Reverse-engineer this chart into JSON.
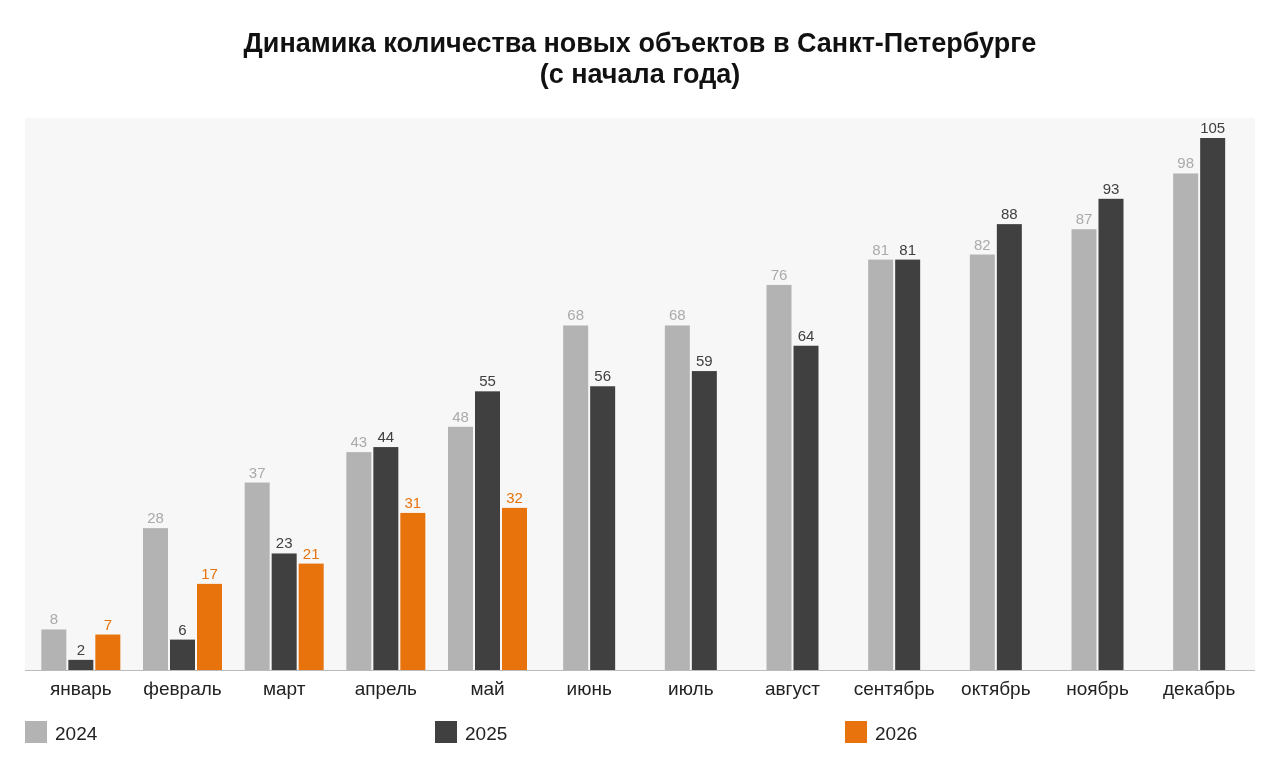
{
  "chart_data": {
    "type": "bar",
    "title": "Динамика количества новых объектов в Санкт-Петербурге\n(с начала года)",
    "categories": [
      "январь",
      "февраль",
      "март",
      "апрель",
      "май",
      "июнь",
      "июль",
      "август",
      "сентябрь",
      "октябрь",
      "ноябрь",
      "декабрь"
    ],
    "series": [
      {
        "name": "2024",
        "color": "#b3b3b3",
        "values": [
          8,
          28,
          37,
          43,
          48,
          68,
          68,
          76,
          81,
          82,
          87,
          98
        ]
      },
      {
        "name": "2025",
        "color": "#404040",
        "values": [
          2,
          6,
          23,
          44,
          55,
          56,
          59,
          64,
          81,
          88,
          93,
          105
        ]
      },
      {
        "name": "2026",
        "color": "#e8730c",
        "values": [
          7,
          17,
          21,
          31,
          32,
          null,
          null,
          null,
          null,
          null,
          null,
          null
        ]
      }
    ],
    "data_labels": true,
    "legend": "bottom",
    "grid": false
  }
}
